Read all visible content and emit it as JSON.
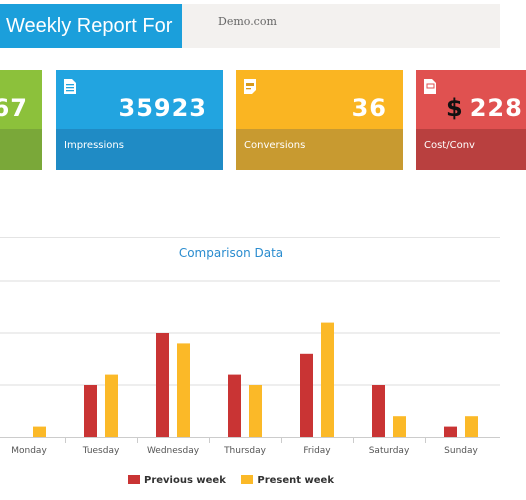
{
  "header": {
    "title": "Weekly Report For",
    "domain": "Demo.com"
  },
  "tiles": [
    {
      "id": "partial",
      "value": "67",
      "label": ""
    },
    {
      "id": "impressions",
      "value": "35923",
      "label": "Impressions",
      "icon": "document-icon"
    },
    {
      "id": "conversions",
      "value": "36",
      "label": "Conversions",
      "icon": "note-icon"
    },
    {
      "id": "cost_conv",
      "currency": "$",
      "value": "228",
      "label": "Cost/Conv",
      "icon": "dollar-file-icon"
    }
  ],
  "chart_data": {
    "type": "bar",
    "title": "Comparison Data",
    "categories": [
      "Monday",
      "Tuesday",
      "Wednesday",
      "Thursday",
      "Friday",
      "Saturday",
      "Sunday"
    ],
    "series": [
      {
        "name": "Previous week",
        "color": "#c93434",
        "values": [
          0,
          5,
          10,
          6,
          8,
          5,
          1
        ]
      },
      {
        "name": "Present week",
        "color": "#fbb928",
        "values": [
          1,
          6,
          9,
          5,
          11,
          2,
          2
        ]
      }
    ],
    "ylim": [
      0,
      15
    ],
    "grid": true,
    "legend": "bottom"
  }
}
